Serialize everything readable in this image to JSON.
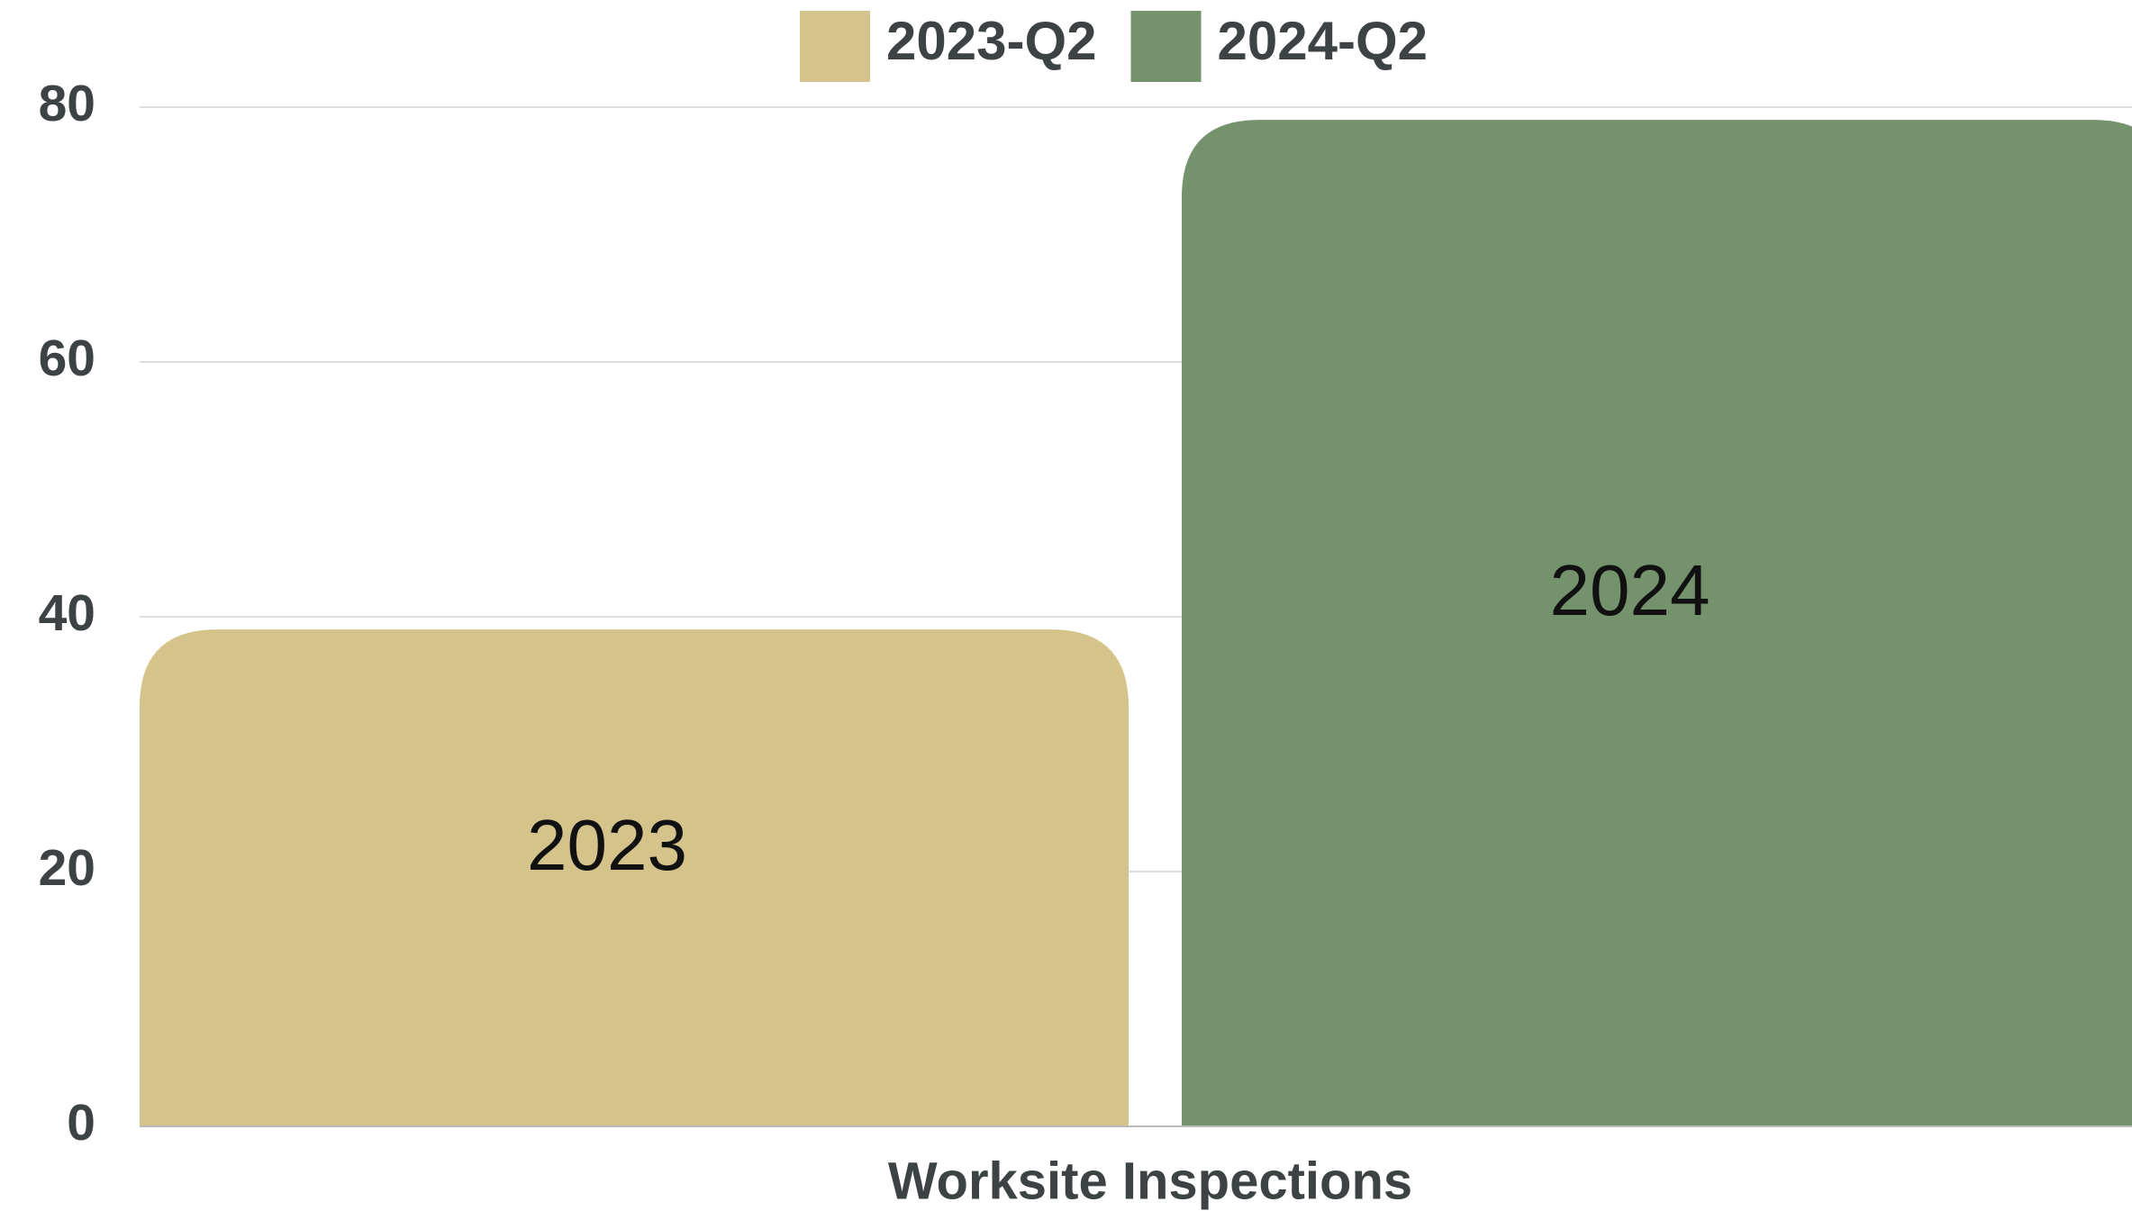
{
  "chart_data": {
    "type": "bar",
    "categories": [
      "Worksite Inspections"
    ],
    "series": [
      {
        "name": "2023-Q2",
        "color": "#d4c38b",
        "label": "2023",
        "values": [
          39
        ]
      },
      {
        "name": "2024-Q2",
        "color": "#74936d",
        "label": "2024",
        "values": [
          79
        ]
      }
    ],
    "ylim": [
      0,
      80
    ],
    "yticks": [
      0,
      20,
      40,
      60,
      80
    ],
    "grid": true,
    "legend": "top"
  }
}
